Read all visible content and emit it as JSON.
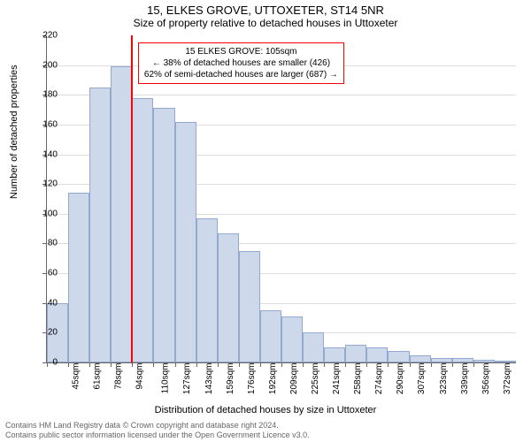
{
  "title": {
    "main": "15, ELKES GROVE, UTTOXETER, ST14 5NR",
    "sub": "Size of property relative to detached houses in Uttoxeter"
  },
  "chart": {
    "type": "histogram",
    "bar_fill": "#cdd8ea",
    "bar_stroke": "#93a9cf",
    "grid_color": "#dddddd",
    "axis_color": "#666666",
    "ref_line_color": "#ff0000",
    "y_label": "Number of detached properties",
    "x_label": "Distribution of detached houses by size in Uttoxeter",
    "x_categories": [
      "45sqm",
      "61sqm",
      "78sqm",
      "94sqm",
      "110sqm",
      "127sqm",
      "143sqm",
      "159sqm",
      "176sqm",
      "192sqm",
      "209sqm",
      "225sqm",
      "241sqm",
      "258sqm",
      "274sqm",
      "290sqm",
      "307sqm",
      "323sqm",
      "339sqm",
      "356sqm",
      "372sqm"
    ],
    "values": [
      40,
      114,
      185,
      199,
      178,
      171,
      162,
      97,
      87,
      75,
      35,
      31,
      20,
      10,
      12,
      10,
      8,
      5,
      3,
      3,
      2,
      0
    ],
    "y_min": 0,
    "y_max": 220,
    "y_tick_step": 20,
    "ref_line_x_value": 105,
    "x_range_min": 45,
    "x_range_max": 380,
    "annotation": {
      "line1": "15 ELKES GROVE: 105sqm",
      "line2": "← 38% of detached houses are smaller (426)",
      "line3": "62% of semi-detached houses are larger (687) →"
    }
  },
  "footer": {
    "line1": "Contains HM Land Registry data © Crown copyright and database right 2024.",
    "line2": "Contains public sector information licensed under the Open Government Licence v3.0."
  }
}
